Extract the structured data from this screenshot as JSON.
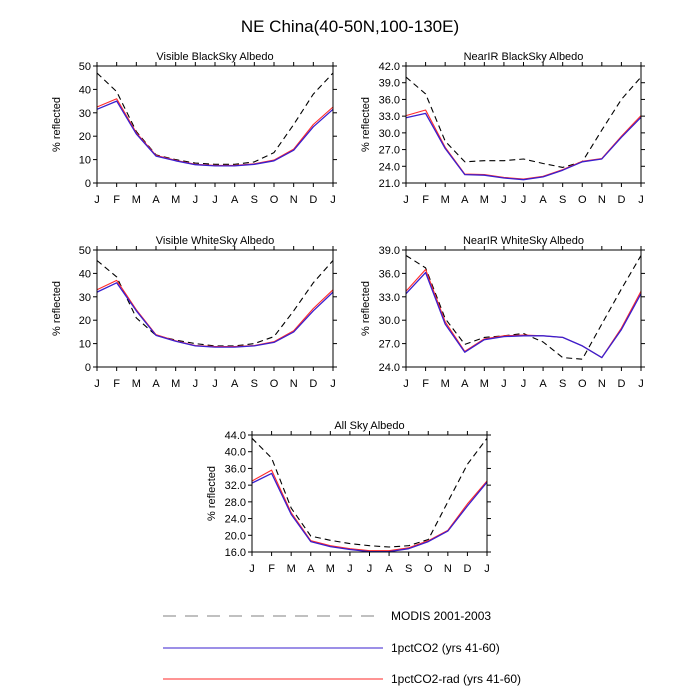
{
  "title": "NE China(40-50N,100-130E)",
  "months": [
    "J",
    "F",
    "M",
    "A",
    "M",
    "J",
    "J",
    "A",
    "S",
    "O",
    "N",
    "D",
    "J"
  ],
  "colors": {
    "modis": "#000000",
    "co2": "#3a1fcf",
    "co2rad": "#ff2a2a",
    "axis": "#000000"
  },
  "legend": [
    {
      "key": "modis",
      "label": "MODIS 2001-2003",
      "style": "dashed",
      "color": "#9a9a9a"
    },
    {
      "key": "co2",
      "label": "1pctCO2 (yrs 41-60)",
      "style": "solid",
      "color": "#3a1fcf"
    },
    {
      "key": "co2rad",
      "label": "1pctCO2-rad (yrs 41-60)",
      "style": "solid",
      "color": "#ff2a2a"
    }
  ],
  "chart_data": [
    {
      "type": "line",
      "title": "Visible BlackSky Albedo",
      "ylabel": "% reflected",
      "ylim": [
        0,
        50
      ],
      "yticks": [
        "0",
        "10",
        "20",
        "30",
        "40",
        "50"
      ],
      "x": [
        "J",
        "F",
        "M",
        "A",
        "M",
        "J",
        "J",
        "A",
        "S",
        "O",
        "N",
        "D",
        "J"
      ],
      "series": [
        {
          "name": "MODIS 2001-2003",
          "values": [
            47,
            39,
            22,
            12,
            10,
            8.5,
            8,
            8,
            9,
            13,
            25,
            38,
            47
          ]
        },
        {
          "name": "1pctCO2 (yrs 41-60)",
          "values": [
            31.5,
            35,
            21,
            11.5,
            9.5,
            7.8,
            7.3,
            7.3,
            8,
            9.5,
            14,
            24,
            31.5
          ]
        },
        {
          "name": "1pctCO2-rad (yrs 41-60)",
          "values": [
            32.5,
            36,
            21.5,
            11.8,
            9.7,
            8,
            7.5,
            7.5,
            8.2,
            9.8,
            14.5,
            25,
            32.5
          ]
        }
      ]
    },
    {
      "type": "line",
      "title": "NearIR BlackSky Albedo",
      "ylabel": "% reflected",
      "ylim": [
        21,
        42
      ],
      "yticks": [
        "21.0",
        "24.0",
        "27.0",
        "30.0",
        "33.0",
        "36.0",
        "39.0",
        "42.0"
      ],
      "x": [
        "J",
        "F",
        "M",
        "A",
        "M",
        "J",
        "J",
        "A",
        "S",
        "O",
        "N",
        "D",
        "J"
      ],
      "series": [
        {
          "name": "MODIS 2001-2003",
          "values": [
            40,
            37,
            28.5,
            24.8,
            25,
            25,
            25.3,
            24.5,
            23.8,
            24.8,
            30.5,
            36,
            40
          ]
        },
        {
          "name": "1pctCO2 (yrs 41-60)",
          "values": [
            32.7,
            33.5,
            27.2,
            22.5,
            22.4,
            21.9,
            21.6,
            22.1,
            23.3,
            24.8,
            25.3,
            29.2,
            32.8
          ]
        },
        {
          "name": "1pctCO2-rad (yrs 41-60)",
          "values": [
            33.1,
            34.1,
            27.4,
            22.6,
            22.5,
            22,
            21.7,
            22.2,
            23.4,
            24.9,
            25.4,
            29.4,
            33.1
          ]
        }
      ]
    },
    {
      "type": "line",
      "title": "Visible WhiteSky Albedo",
      "ylabel": "% reflected",
      "ylim": [
        0,
        50
      ],
      "yticks": [
        "0",
        "10",
        "20",
        "30",
        "40",
        "50"
      ],
      "x": [
        "J",
        "F",
        "M",
        "A",
        "M",
        "J",
        "J",
        "A",
        "S",
        "O",
        "N",
        "D",
        "J"
      ],
      "series": [
        {
          "name": "MODIS 2001-2003",
          "values": [
            45.5,
            38.5,
            21,
            13.5,
            11.5,
            10,
            9,
            9,
            10,
            13,
            24,
            36,
            45.5
          ]
        },
        {
          "name": "1pctCO2 (yrs 41-60)",
          "values": [
            32,
            36,
            24,
            13.5,
            11,
            9,
            8.5,
            8.5,
            9,
            10.5,
            15,
            24,
            32
          ]
        },
        {
          "name": "1pctCO2-rad (yrs 41-60)",
          "values": [
            33,
            37,
            24.5,
            13.8,
            11.2,
            9.2,
            8.7,
            8.7,
            9.2,
            10.8,
            15.5,
            25,
            33
          ]
        }
      ]
    },
    {
      "type": "line",
      "title": "NearIR WhiteSky Albedo",
      "ylabel": "% reflected",
      "ylim": [
        24,
        39
      ],
      "yticks": [
        "24.0",
        "27.0",
        "30.0",
        "33.0",
        "36.0",
        "39.0"
      ],
      "x": [
        "J",
        "F",
        "M",
        "A",
        "M",
        "J",
        "J",
        "A",
        "S",
        "O",
        "N",
        "D",
        "J"
      ],
      "series": [
        {
          "name": "MODIS 2001-2003",
          "values": [
            38.3,
            36.7,
            30.2,
            26.9,
            27.8,
            28,
            28.3,
            27.2,
            25.2,
            25,
            29.5,
            34,
            38.3
          ]
        },
        {
          "name": "1pctCO2 (yrs 41-60)",
          "values": [
            33.4,
            36.1,
            29.5,
            25.9,
            27.5,
            27.9,
            28,
            28,
            27.8,
            26.7,
            25.2,
            28.8,
            33.4
          ]
        },
        {
          "name": "1pctCO2-rad (yrs 41-60)",
          "values": [
            33.7,
            36.5,
            29.8,
            26,
            27.6,
            28,
            28.1,
            28,
            27.8,
            26.7,
            25.2,
            29,
            33.7
          ]
        }
      ]
    },
    {
      "type": "line",
      "title": "All Sky Albedo",
      "ylabel": "% reflected",
      "ylim": [
        16,
        44
      ],
      "yticks": [
        "16.0",
        "20.0",
        "24.0",
        "28.0",
        "32.0",
        "36.0",
        "40.0",
        "44.0"
      ],
      "x": [
        "J",
        "F",
        "M",
        "A",
        "M",
        "J",
        "J",
        "A",
        "S",
        "O",
        "N",
        "D",
        "J"
      ],
      "series": [
        {
          "name": "MODIS 2001-2003",
          "values": [
            43.2,
            38.5,
            26.5,
            19.8,
            18.8,
            18,
            17.5,
            17.2,
            17.5,
            19,
            28,
            37,
            43.2
          ]
        },
        {
          "name": "1pctCO2 (yrs 41-60)",
          "values": [
            32.5,
            34.8,
            25,
            18.5,
            17.3,
            16.6,
            16.1,
            16.1,
            16.8,
            18.5,
            21,
            27,
            32.7
          ]
        },
        {
          "name": "1pctCO2-rad (yrs 41-60)",
          "values": [
            33,
            35.6,
            25.4,
            18.7,
            17.5,
            16.8,
            16.3,
            16.3,
            17,
            18.7,
            21.2,
            27.5,
            33
          ]
        }
      ]
    }
  ]
}
